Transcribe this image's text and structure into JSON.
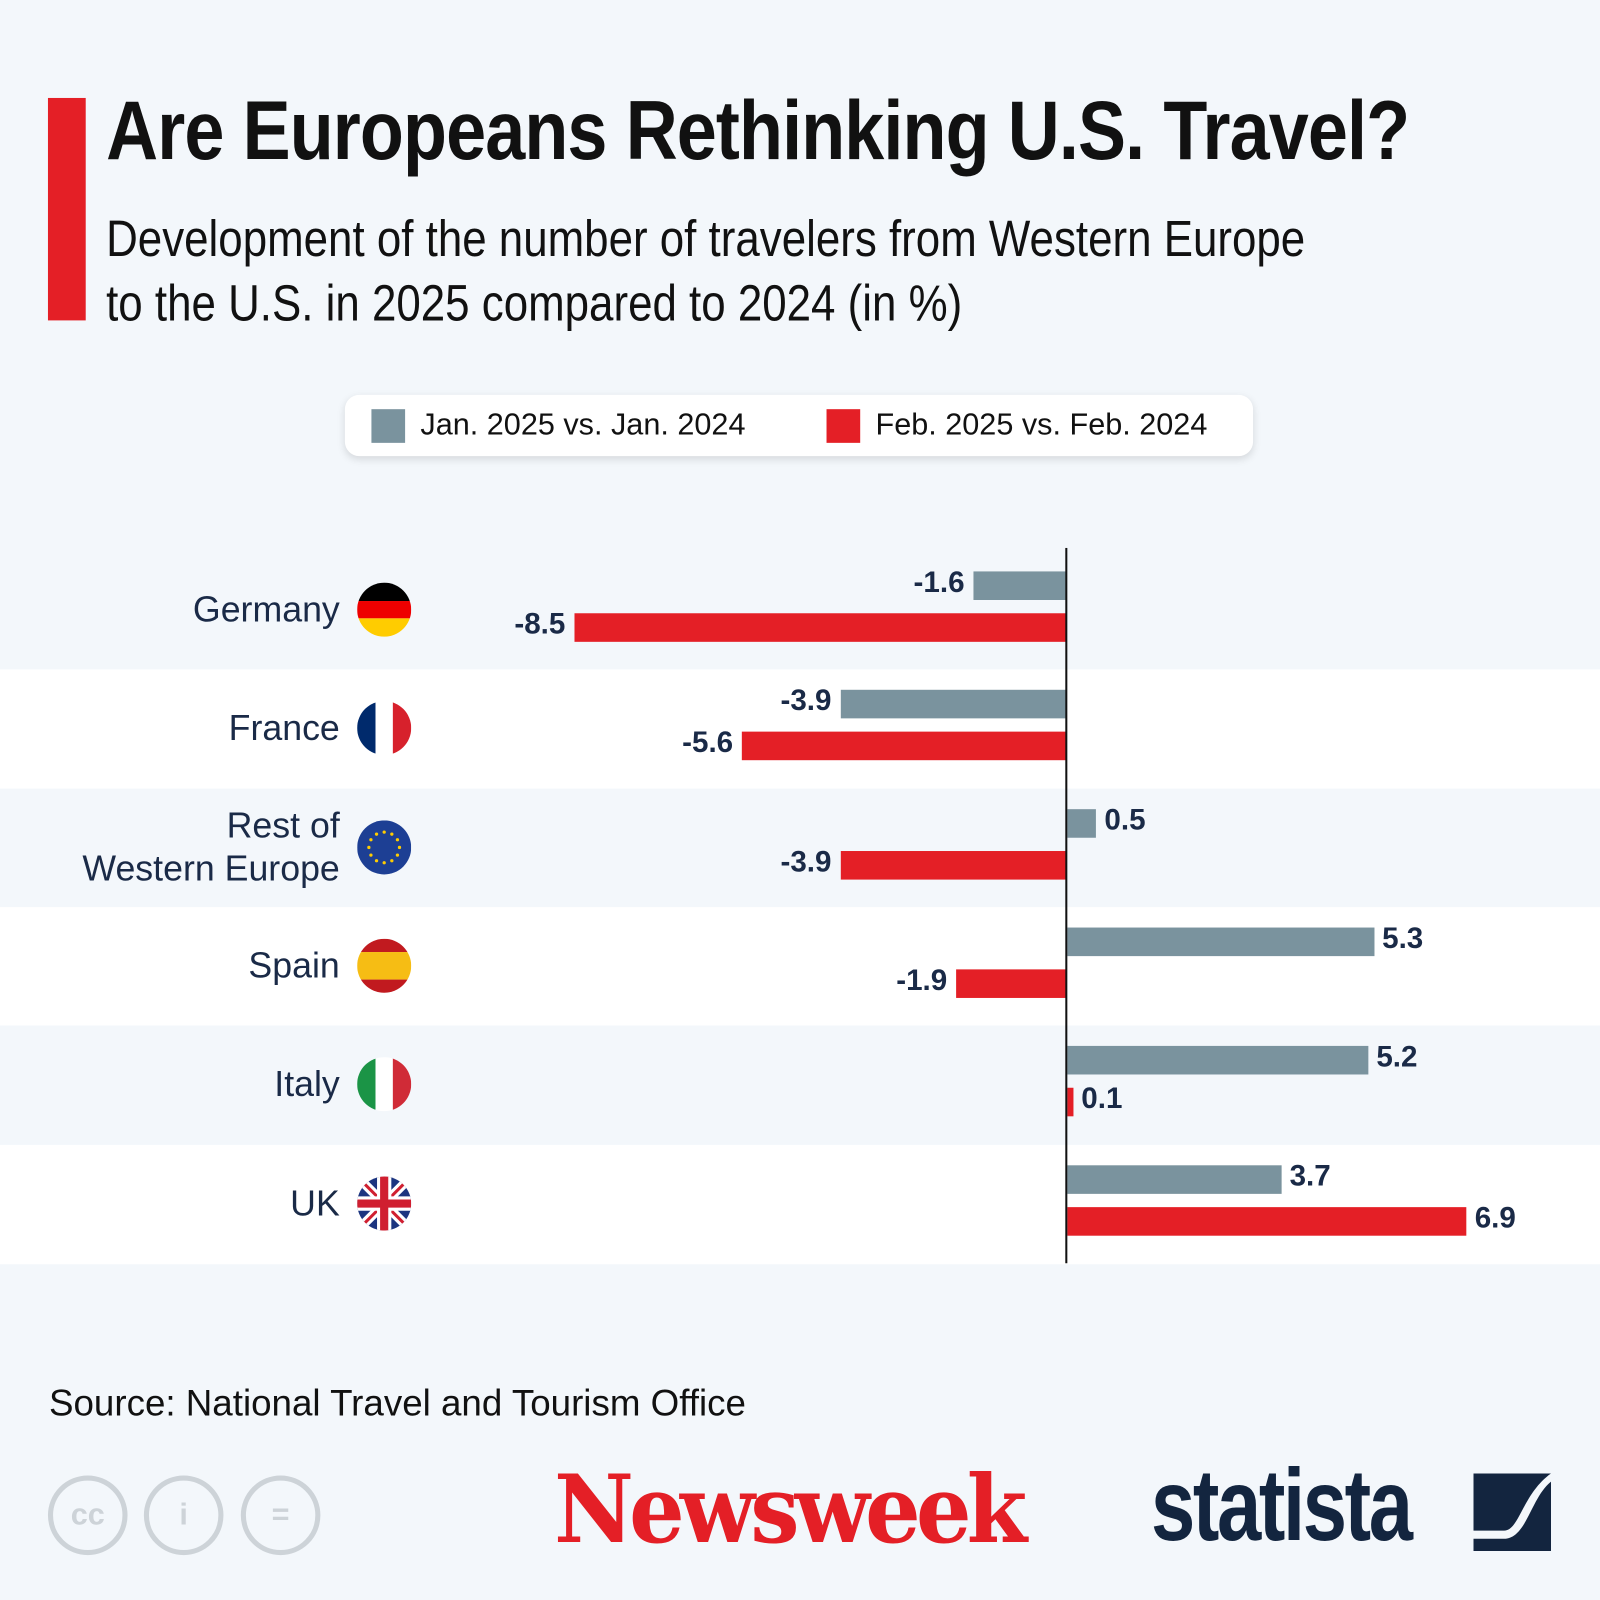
{
  "title": "Are Europeans Rethinking U.S. Travel?",
  "subtitle_line1": "Development of the number of travelers from Western Europe",
  "subtitle_line2": "to the U.S. in 2025 compared to 2024 (in %)",
  "source": "Source: National Travel and Tourism Office",
  "logos": {
    "newsweek": "Newsweek",
    "statista": "statista",
    "license_icons": [
      "cc-icon",
      "attribution-icon",
      "no-derivatives-icon"
    ]
  },
  "colors": {
    "accent": "#e41f26",
    "jan": "#7a939e",
    "feb": "#e41f26",
    "row_alt": "#ffffff",
    "background": "#f3f7fb"
  },
  "chart_data": {
    "type": "bar",
    "orientation": "horizontal",
    "title": "Are Europeans Rethinking U.S. Travel?",
    "categories": [
      "Germany",
      "France",
      "Rest of Western Europe",
      "Spain",
      "Italy",
      "UK"
    ],
    "category_lines": [
      [
        "Germany"
      ],
      [
        "France"
      ],
      [
        "Rest of",
        "Western Europe"
      ],
      [
        "Spain"
      ],
      [
        "Italy"
      ],
      [
        "UK"
      ]
    ],
    "flags": [
      "germany-flag",
      "france-flag",
      "eu-flag",
      "spain-flag",
      "italy-flag",
      "uk-flag"
    ],
    "series": [
      {
        "name": "Jan. 2025 vs. Jan. 2024",
        "color": "#7a939e",
        "values": [
          -1.6,
          -3.9,
          0.5,
          5.3,
          5.2,
          3.7
        ]
      },
      {
        "name": "Feb. 2025 vs. Feb. 2024",
        "color": "#e41f26",
        "values": [
          -8.5,
          -5.6,
          -3.9,
          -1.9,
          0.1,
          6.9
        ]
      }
    ],
    "legend": "top-center",
    "grid": false
  }
}
